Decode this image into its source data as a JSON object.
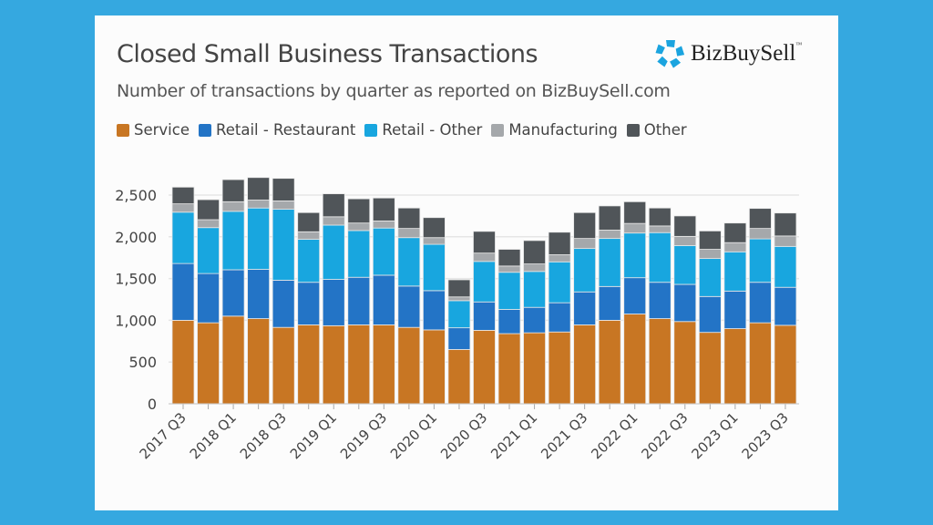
{
  "header": {
    "title": "Closed Small Business Transactions",
    "subtitle": "Number of transactions by quarter as reported on BizBuySell.com",
    "logo_text": "BizBuySell",
    "logo_tm": "™"
  },
  "colors": {
    "background": "#35a8e0",
    "logo": "#1ba4df"
  },
  "chart_data": {
    "type": "bar",
    "stacked": true,
    "title": "Closed Small Business Transactions",
    "subtitle": "Number of transactions by quarter as reported on BizBuySell.com",
    "xlabel": "",
    "ylabel": "",
    "ylim": [
      0,
      2750
    ],
    "yticks": [
      0,
      500,
      1000,
      1500,
      2000,
      2500
    ],
    "ytick_labels": [
      "0",
      "500",
      "1,000",
      "1,500",
      "2,000",
      "2,500"
    ],
    "grid": true,
    "legend_position": "top-left",
    "categories": [
      "2017 Q3",
      "2017 Q4",
      "2018 Q1",
      "2018 Q2",
      "2018 Q3",
      "2018 Q4",
      "2019 Q1",
      "2019 Q2",
      "2019 Q3",
      "2019 Q4",
      "2020 Q1",
      "2020 Q2",
      "2020 Q3",
      "2020 Q4",
      "2021 Q1",
      "2021 Q2",
      "2021 Q3",
      "2021 Q4",
      "2022 Q1",
      "2022 Q2",
      "2022 Q3",
      "2022 Q4",
      "2023 Q1",
      "2023 Q2",
      "2023 Q3"
    ],
    "shown_tick_labels": [
      "2017 Q3",
      "2018 Q1",
      "2018 Q3",
      "2019 Q1",
      "2019 Q3",
      "2020 Q1",
      "2020 Q3",
      "2021 Q1",
      "2021 Q3",
      "2022 Q1",
      "2022 Q3",
      "2023 Q1",
      "2023 Q3"
    ],
    "series": [
      {
        "name": "Service",
        "color": "#c87623",
        "values": [
          1000,
          970,
          1050,
          1020,
          915,
          945,
          935,
          945,
          945,
          915,
          885,
          650,
          880,
          840,
          850,
          860,
          945,
          1000,
          1075,
          1020,
          985,
          855,
          900,
          970,
          940
        ]
      },
      {
        "name": "Retail - Restaurant",
        "color": "#2374c6",
        "values": [
          680,
          590,
          555,
          590,
          565,
          510,
          555,
          570,
          595,
          495,
          470,
          260,
          340,
          290,
          305,
          350,
          395,
          405,
          435,
          435,
          445,
          430,
          450,
          485,
          455
        ]
      },
      {
        "name": "Retail - Other",
        "color": "#18a6df",
        "values": [
          615,
          550,
          700,
          735,
          850,
          515,
          650,
          560,
          565,
          580,
          555,
          325,
          485,
          445,
          430,
          490,
          520,
          575,
          535,
          595,
          465,
          455,
          470,
          520,
          490
        ]
      },
      {
        "name": "Manufacturing",
        "color": "#a5a8ab",
        "values": [
          100,
          95,
          115,
          95,
          100,
          90,
          100,
          90,
          85,
          110,
          80,
          45,
          100,
          75,
          90,
          85,
          120,
          100,
          115,
          80,
          110,
          110,
          110,
          125,
          125
        ]
      },
      {
        "name": "Other",
        "color": "#505559",
        "values": [
          200,
          240,
          265,
          270,
          270,
          230,
          275,
          290,
          275,
          245,
          240,
          205,
          260,
          200,
          280,
          270,
          310,
          290,
          260,
          215,
          245,
          220,
          235,
          240,
          275
        ]
      }
    ]
  }
}
